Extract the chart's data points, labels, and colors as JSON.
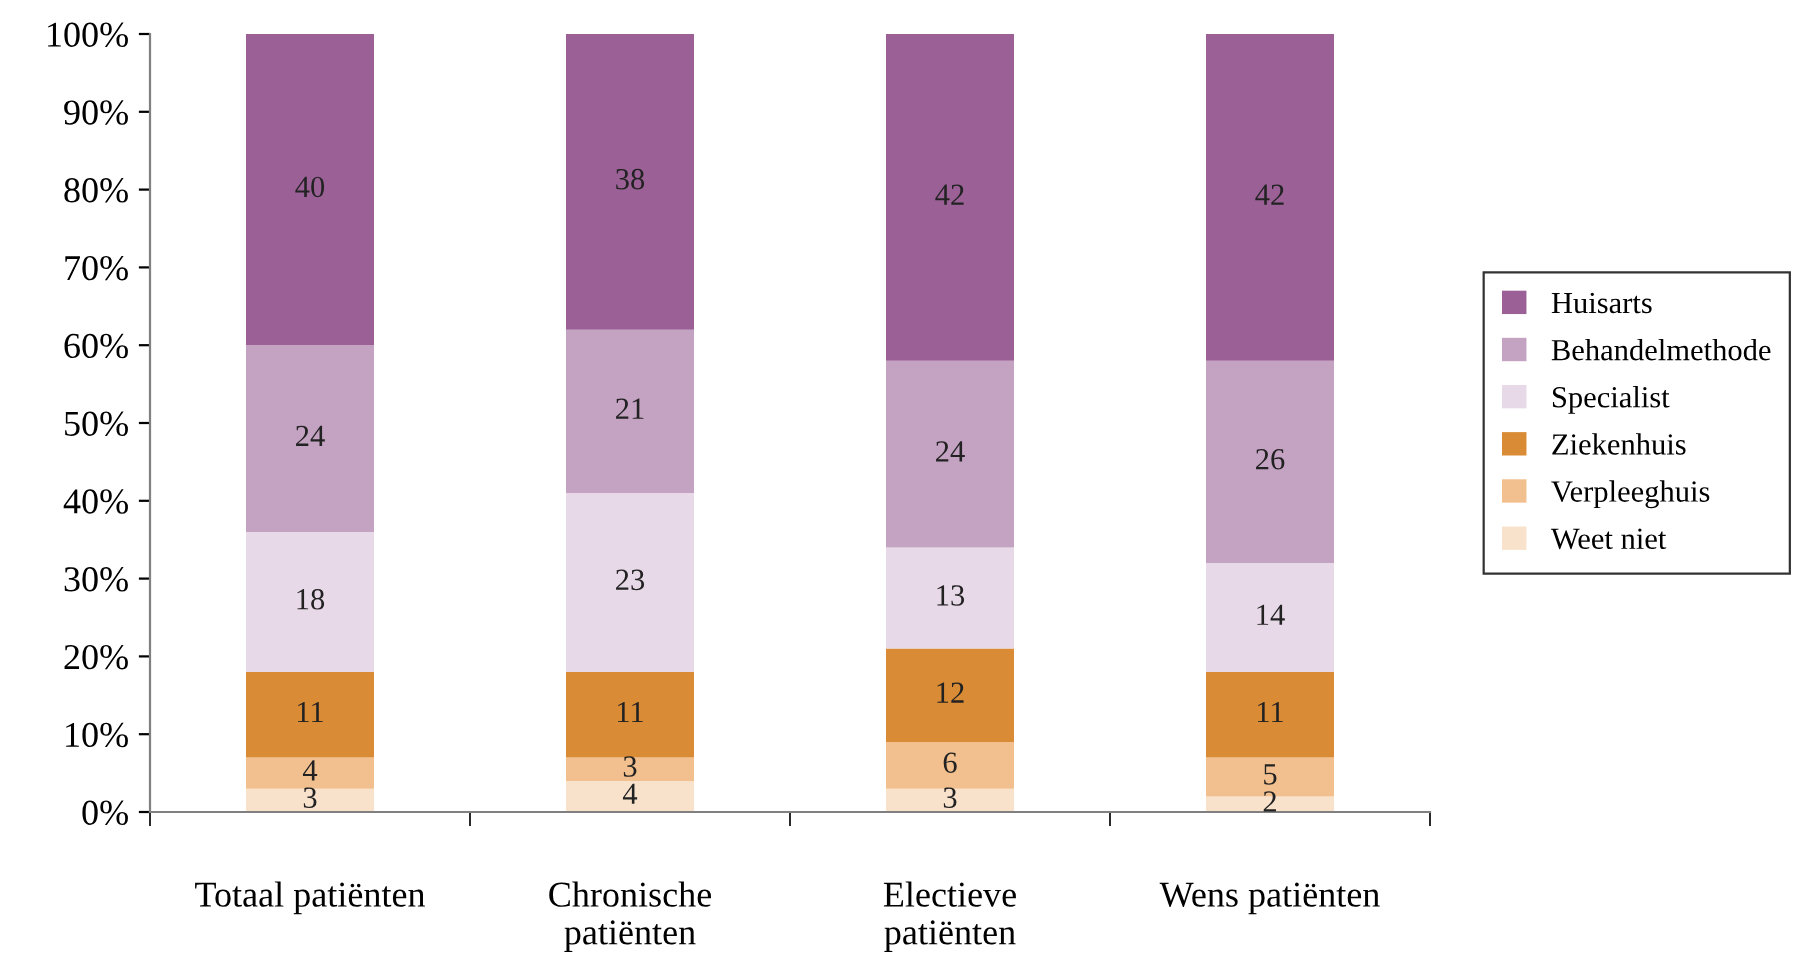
{
  "chart_data": {
    "type": "bar",
    "stacked": true,
    "data_labels": true,
    "grid": false,
    "legend": "right",
    "categories": [
      "Totaal patiënten",
      "Chronische\npatiënten",
      "Electieve\npatiënten",
      "Wens patiënten"
    ],
    "series": [
      {
        "name": "Weet niet",
        "color": "#f8e2cc",
        "values": [
          3,
          4,
          3,
          2
        ]
      },
      {
        "name": "Verpleeghuis",
        "color": "#f2c08f",
        "values": [
          4,
          3,
          6,
          5
        ]
      },
      {
        "name": "Ziekenhuis",
        "color": "#d98b35",
        "values": [
          11,
          11,
          12,
          11
        ]
      },
      {
        "name": "Specialist",
        "color": "#e8d9e8",
        "values": [
          18,
          23,
          13,
          14
        ]
      },
      {
        "name": "Behandelmethode",
        "color": "#c4a2c2",
        "values": [
          24,
          21,
          24,
          26
        ]
      },
      {
        "name": "Huisarts",
        "color": "#9b6196",
        "values": [
          40,
          38,
          42,
          42
        ]
      }
    ],
    "ylim": [
      0,
      100
    ],
    "yticks": [
      {
        "value": 0,
        "label": "0%"
      },
      {
        "value": 10,
        "label": "10%"
      },
      {
        "value": 20,
        "label": "20%"
      },
      {
        "value": 30,
        "label": "30%"
      },
      {
        "value": 40,
        "label": "40%"
      },
      {
        "value": 50,
        "label": "50%"
      },
      {
        "value": 60,
        "label": "60%"
      },
      {
        "value": 70,
        "label": "70%"
      },
      {
        "value": 80,
        "label": "80%"
      },
      {
        "value": 90,
        "label": "90%"
      },
      {
        "value": 100,
        "label": "100%"
      }
    ]
  }
}
